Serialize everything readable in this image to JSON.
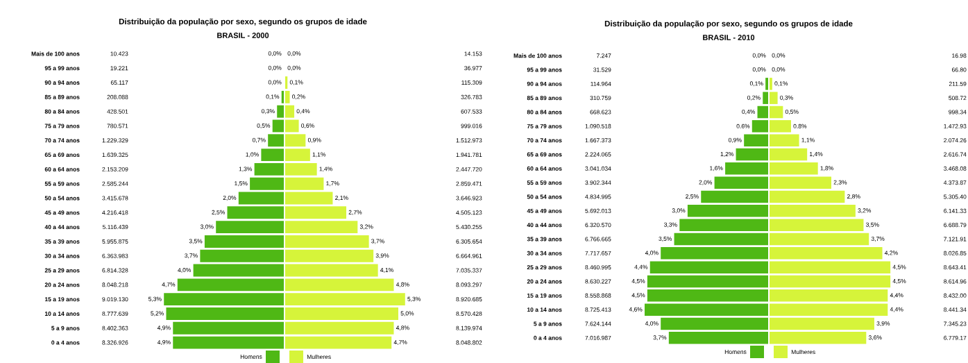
{
  "chart_data": [
    {
      "type": "bar",
      "orientation": "horizontal",
      "title": "Distribuição da população por sexo, segundo os grupos de idade",
      "subtitle": "BRASIL - 2000",
      "categories": [
        "Mais de 100 anos",
        "95 a 99 anos",
        "90 a 94 anos",
        "85 a 89 anos",
        "80 a 84 anos",
        "75 a 79 anos",
        "70 a 74 anos",
        "65 a 69 anos",
        "60 a 64 anos",
        "55 a 59 anos",
        "50 a 54 anos",
        "45 a 49 anos",
        "40 a 44 anos",
        "35 a 39 anos",
        "30 a 34 anos",
        "25 a 29 anos",
        "20 a 24 anos",
        "15 a 19 anos",
        "10 a 14 anos",
        "5 a 9 anos",
        "0 a 4 anos"
      ],
      "series": [
        {
          "name": "Homens",
          "color": "#4fb815",
          "values": [
            0.0,
            0.0,
            0.0,
            0.1,
            0.3,
            0.5,
            0.7,
            1.0,
            1.3,
            1.5,
            2.0,
            2.5,
            3.0,
            3.5,
            3.7,
            4.0,
            4.7,
            5.3,
            5.2,
            4.9,
            4.9
          ],
          "value_labels": [
            "0,0%",
            "0,0%",
            "0,0%",
            "0,1%",
            "0,3%",
            "0,5%",
            "0,7%",
            "1,0%",
            "1,3%",
            "1,5%",
            "2,0%",
            "2,5%",
            "3,0%",
            "3,5%",
            "3,7%",
            "4,0%",
            "4,7%",
            "5,3%",
            "5,2%",
            "4,9%",
            "4,9%"
          ]
        }
      ],
      "xlim": [
        5.3,
        0
      ],
      "tick_labels": "y",
      "legend": "bottom",
      "annotations": [
        "10.423",
        "19.221",
        "65.117",
        "208.088",
        "428.501",
        "780.571",
        "1.229.329",
        "1.639.325",
        "2.153.209",
        "2.585.244",
        "3.415.678",
        "4.216.418",
        "5.116.439",
        "5.955.875",
        "6.363.983",
        "6.814.328",
        "8.048.218",
        "9.019.130",
        "8.777.639",
        "8.402.363",
        "8.326.926"
      ]
    },
    {
      "type": "bar",
      "orientation": "horizontal",
      "categories": [
        null,
        null,
        null,
        null,
        null,
        null,
        null,
        null,
        null,
        null,
        null,
        null,
        null,
        null,
        null,
        null,
        null,
        null,
        null,
        null,
        null
      ],
      "series": [
        {
          "name": "Mulheres",
          "color": "#d6f43a",
          "values": [
            0.0,
            0.0,
            0.1,
            0.2,
            0.4,
            0.6,
            0.9,
            1.1,
            1.4,
            1.7,
            2.1,
            2.7,
            3.2,
            3.7,
            3.9,
            4.1,
            4.8,
            5.3,
            5.0,
            4.8,
            4.7
          ],
          "value_labels": [
            "0,0%",
            "0,0%",
            "0,1%",
            "0,2%",
            "0,4%",
            "0,6%",
            "0,9%",
            "1,1%",
            "1,4%",
            "1,7%",
            "2,1%",
            "2,7%",
            "3,2%",
            "3,7%",
            "3,9%",
            "4,1%",
            "4,8%",
            "5,3%",
            "5,0%",
            "4,8%",
            "4,7%"
          ]
        }
      ],
      "xlim": [
        0,
        5.3
      ],
      "tick_labels": false,
      "legend": "bottom",
      "annotations": [
        "14.153",
        "36.977",
        "115.309",
        "326.783",
        "607.533",
        "999.016",
        "1.512.973",
        "1.941.781",
        "2.447.720",
        "2.859.471",
        "3.646.923",
        "4.505.123",
        "5.430.255",
        "6.305.654",
        "6.664.961",
        "7.035.337",
        "8.093.297",
        "8.920.685",
        "8.570.428",
        "8.139.974",
        "8.048.802"
      ]
    },
    {
      "type": "bar",
      "orientation": "horizontal",
      "title": "Distribuição da população por sexo, segundo os grupos de idade",
      "subtitle": "BRASIL - 2010",
      "categories": [
        "Mais de 100 anos",
        "95 a 99 anos",
        "90 a 94 anos",
        "85 a 89 anos",
        "80 a 84 anos",
        "75 a 79 anos",
        "70 a 74 anos",
        "65 a 69 anos",
        "60 a 64 anos",
        "55 a 59 anos",
        "50 a 54 anos",
        "45 a 49 anos",
        "40 a 44 anos",
        "35 a 39 anos",
        "30 a 34 anos",
        "25 a 29 anos",
        "20 a 24 anos",
        "15 a 19 anos",
        "10 a 14 anos",
        "5 a 9 anos",
        "0 a 4 anos"
      ],
      "series": [
        {
          "name": "Homens",
          "color": "#4fb815",
          "values": [
            0.0,
            0.0,
            0.1,
            0.2,
            0.4,
            0.6,
            0.9,
            1.2,
            1.6,
            2.0,
            2.5,
            3.0,
            3.3,
            3.5,
            4.0,
            4.4,
            4.5,
            4.5,
            4.6,
            4.0,
            3.7
          ],
          "value_labels": [
            "0,0%",
            "0,0%",
            "0,1%",
            "0,2%",
            "0,4%",
            "0.6%",
            "0,9%",
            "1,2%",
            "1,6%",
            "2,0%",
            "2,5%",
            "3,0%",
            "3,3%",
            "3,5%",
            "4,0%",
            "4,4%",
            "4,5%",
            "4,5%",
            "4,6%",
            "4,0%",
            "3,7%"
          ]
        }
      ],
      "xlim": [
        4.6,
        0
      ],
      "tick_labels": "y",
      "legend": "bottom",
      "annotations": [
        "7.247",
        "31.529",
        "114.964",
        "310.759",
        "668.623",
        "1.090.518",
        "1.667.373",
        "2.224.065",
        "3.041.034",
        "3.902.344",
        "4.834.995",
        "5.692.013",
        "6.320.570",
        "6.766.665",
        "7.717.657",
        "8.460.995",
        "8.630.227",
        "8.558.868",
        "8.725.413",
        "7.624.144",
        "7.016.987"
      ]
    },
    {
      "type": "bar",
      "orientation": "horizontal",
      "categories": [
        null,
        null,
        null,
        null,
        null,
        null,
        null,
        null,
        null,
        null,
        null,
        null,
        null,
        null,
        null,
        null,
        null,
        null,
        null,
        null,
        null
      ],
      "series": [
        {
          "name": "Mulheres",
          "color": "#d6f43a",
          "values": [
            0.0,
            0.0,
            0.1,
            0.3,
            0.5,
            0.8,
            1.1,
            1.4,
            1.8,
            2.3,
            2.8,
            3.2,
            3.5,
            3.7,
            4.2,
            4.5,
            4.5,
            4.4,
            4.4,
            3.9,
            3.6
          ],
          "value_labels": [
            "0,0%",
            "0,0%",
            "0,1%",
            "0,3%",
            "0,5%",
            "0.8%",
            "1,1%",
            "1,4%",
            "1,8%",
            "2,3%",
            "2,8%",
            "3,2%",
            "3,5%",
            "3,7%",
            "4,2%",
            "4,5%",
            "4,5%",
            "4,4%",
            "4,4%",
            "3,9%",
            "3,6%"
          ]
        }
      ],
      "xlim": [
        0,
        4.5
      ],
      "tick_labels": false,
      "legend": "bottom",
      "annotations": [
        "16.98",
        "66.80",
        "211.59",
        "508.72",
        "998.34",
        "1.472.93",
        "2.074.26",
        "2.616.74",
        "3.468.08",
        "4.373.87",
        "5.305.40",
        "6.141.33",
        "6.688.79",
        "7.121.91",
        "8.026.85",
        "8.643.41",
        "8.614.96",
        "8.432.00",
        "8.441.34",
        "7.345.23",
        "6.779.17"
      ]
    }
  ]
}
